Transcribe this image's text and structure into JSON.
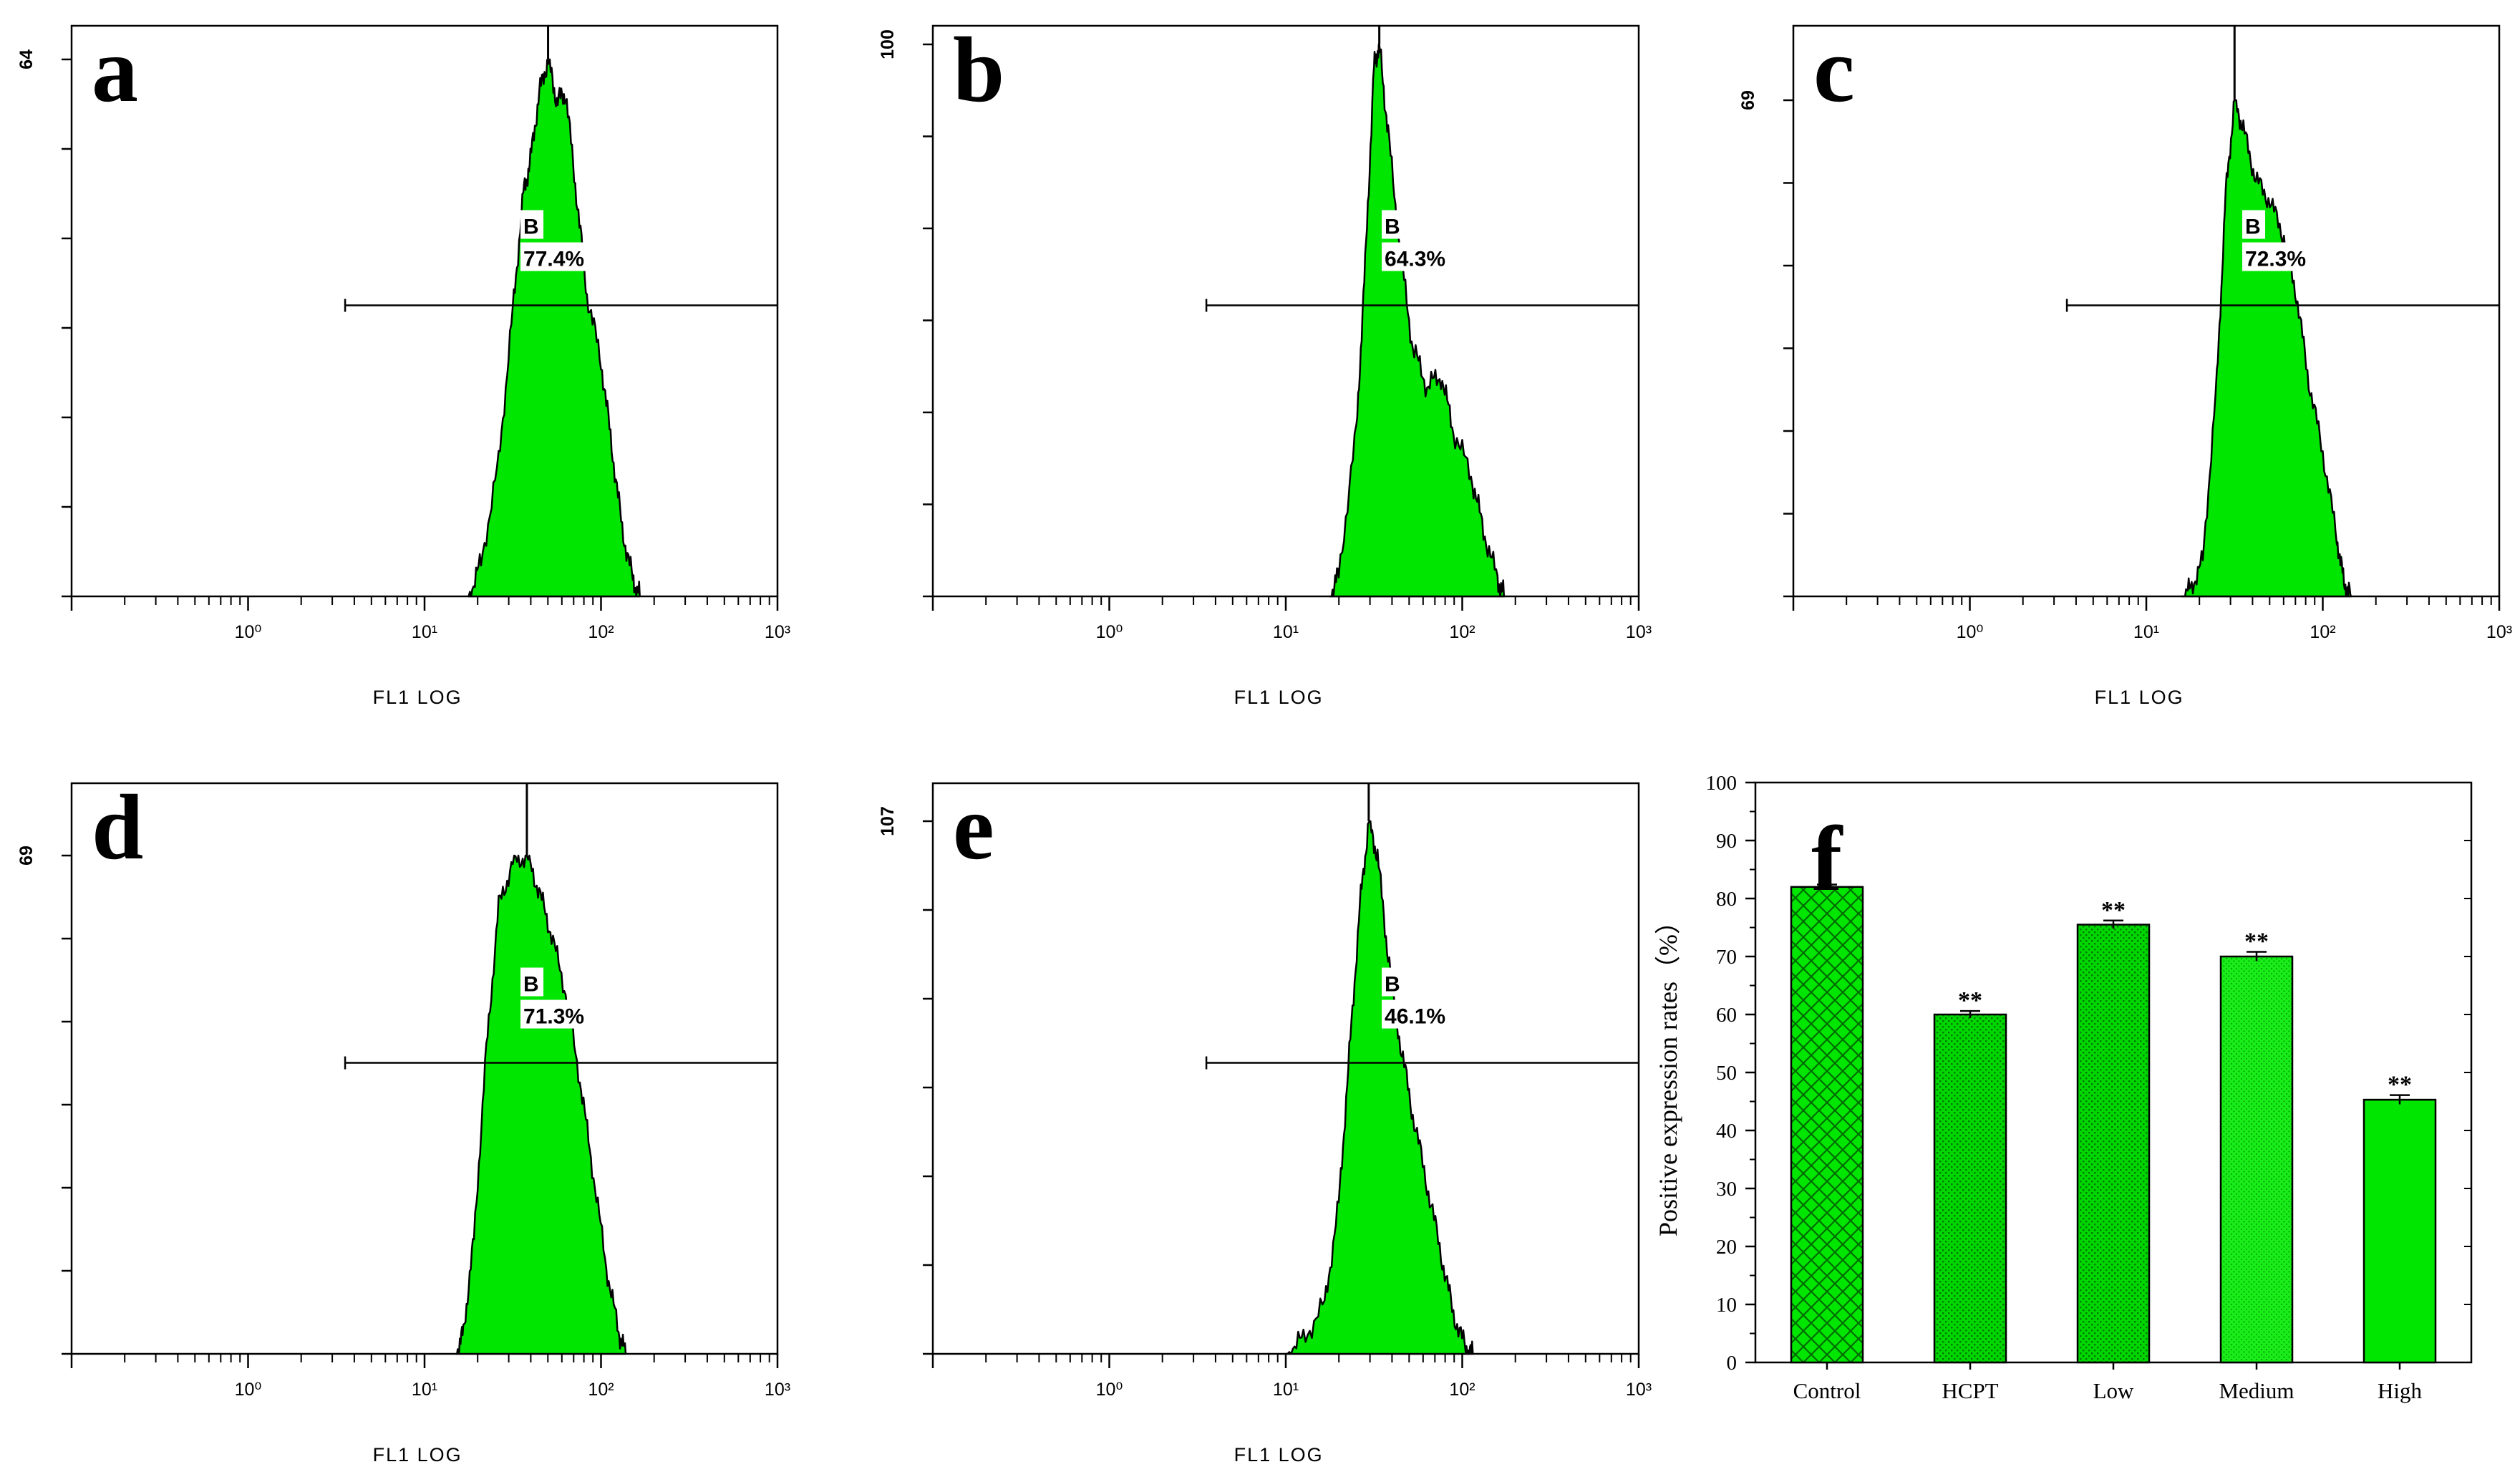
{
  "colors": {
    "fill": "#00e600",
    "fill_dark": "#00b800",
    "outline": "#000000",
    "background": "#ffffff"
  },
  "chart_data": [
    {
      "type": "histogram",
      "panel": "a",
      "y_max_label": "64",
      "xlabel": "FL1 LOG",
      "x_tick_labels": [
        "10⁰",
        "10¹",
        "10²",
        "10³"
      ],
      "x_range_log10": [
        -1,
        3
      ],
      "marker": {
        "name": "B",
        "value": "77.4%",
        "from_log10": 0.55,
        "to_log10": 3
      },
      "distribution": [
        {
          "log10": 1.25,
          "count": 0
        },
        {
          "log10": 1.32,
          "count": 4
        },
        {
          "log10": 1.42,
          "count": 16
        },
        {
          "log10": 1.5,
          "count": 34
        },
        {
          "log10": 1.56,
          "count": 48
        },
        {
          "log10": 1.6,
          "count": 52
        },
        {
          "log10": 1.65,
          "count": 60
        },
        {
          "log10": 1.7,
          "count": 64
        },
        {
          "log10": 1.75,
          "count": 59
        },
        {
          "log10": 1.8,
          "count": 60
        },
        {
          "log10": 1.86,
          "count": 48
        },
        {
          "log10": 1.92,
          "count": 36
        },
        {
          "log10": 2.0,
          "count": 28
        },
        {
          "log10": 2.06,
          "count": 18
        },
        {
          "log10": 2.12,
          "count": 8
        },
        {
          "log10": 2.18,
          "count": 2
        },
        {
          "log10": 2.22,
          "count": 0
        }
      ]
    },
    {
      "type": "histogram",
      "panel": "b",
      "y_max_label": "100",
      "xlabel": "FL1 LOG",
      "x_tick_labels": [
        "10⁰",
        "10¹",
        "10²",
        "10³"
      ],
      "x_range_log10": [
        -1,
        3
      ],
      "marker": {
        "name": "B",
        "value": "64.3%",
        "from_log10": 0.55,
        "to_log10": 3
      },
      "distribution": [
        {
          "log10": 1.25,
          "count": 0
        },
        {
          "log10": 1.3,
          "count": 4
        },
        {
          "log10": 1.4,
          "count": 30
        },
        {
          "log10": 1.45,
          "count": 60
        },
        {
          "log10": 1.5,
          "count": 96
        },
        {
          "log10": 1.53,
          "count": 100
        },
        {
          "log10": 1.58,
          "count": 84
        },
        {
          "log10": 1.65,
          "count": 62
        },
        {
          "log10": 1.72,
          "count": 45
        },
        {
          "log10": 1.8,
          "count": 38
        },
        {
          "log10": 1.88,
          "count": 40
        },
        {
          "log10": 1.95,
          "count": 30
        },
        {
          "log10": 2.05,
          "count": 22
        },
        {
          "log10": 2.12,
          "count": 12
        },
        {
          "log10": 2.2,
          "count": 3
        },
        {
          "log10": 2.24,
          "count": 0
        }
      ]
    },
    {
      "type": "histogram",
      "panel": "c",
      "y_max_label": "69",
      "xlabel": "FL1 LOG",
      "x_tick_labels": [
        "10⁰",
        "10¹",
        "10²",
        "10³"
      ],
      "x_range_log10": [
        -1,
        3
      ],
      "marker": {
        "name": "B",
        "value": "72.3%",
        "from_log10": 0.55,
        "to_log10": 3
      },
      "distribution": [
        {
          "log10": 1.2,
          "count": 0
        },
        {
          "log10": 1.25,
          "count": 1
        },
        {
          "log10": 1.32,
          "count": 5
        },
        {
          "log10": 1.4,
          "count": 30
        },
        {
          "log10": 1.45,
          "count": 56
        },
        {
          "log10": 1.5,
          "count": 69
        },
        {
          "log10": 1.55,
          "count": 65
        },
        {
          "log10": 1.62,
          "count": 58
        },
        {
          "log10": 1.7,
          "count": 55
        },
        {
          "log10": 1.78,
          "count": 50
        },
        {
          "log10": 1.85,
          "count": 42
        },
        {
          "log10": 1.92,
          "count": 30
        },
        {
          "log10": 2.0,
          "count": 20
        },
        {
          "log10": 2.08,
          "count": 8
        },
        {
          "log10": 2.12,
          "count": 2
        },
        {
          "log10": 2.16,
          "count": 0
        }
      ]
    },
    {
      "type": "histogram",
      "panel": "d",
      "y_max_label": "69",
      "xlabel": "FL1 LOG",
      "x_tick_labels": [
        "10⁰",
        "10¹",
        "10²",
        "10³"
      ],
      "x_range_log10": [
        -1,
        3
      ],
      "marker": {
        "name": "B",
        "value": "71.3%",
        "from_log10": 0.55,
        "to_log10": 3
      },
      "distribution": [
        {
          "log10": 1.18,
          "count": 0
        },
        {
          "log10": 1.22,
          "count": 3
        },
        {
          "log10": 1.28,
          "count": 16
        },
        {
          "log10": 1.35,
          "count": 42
        },
        {
          "log10": 1.42,
          "count": 62
        },
        {
          "log10": 1.5,
          "count": 68
        },
        {
          "log10": 1.58,
          "count": 69
        },
        {
          "log10": 1.65,
          "count": 64
        },
        {
          "log10": 1.72,
          "count": 58
        },
        {
          "log10": 1.8,
          "count": 50
        },
        {
          "log10": 1.88,
          "count": 38
        },
        {
          "log10": 1.95,
          "count": 26
        },
        {
          "log10": 2.03,
          "count": 12
        },
        {
          "log10": 2.1,
          "count": 3
        },
        {
          "log10": 2.14,
          "count": 0
        }
      ]
    },
    {
      "type": "histogram",
      "panel": "e",
      "y_max_label": "107",
      "xlabel": "FL1 LOG",
      "x_tick_labels": [
        "10⁰",
        "10¹",
        "10²",
        "10³"
      ],
      "x_range_log10": [
        -1,
        3
      ],
      "marker": {
        "name": "B",
        "value": "46.1%",
        "from_log10": 0.55,
        "to_log10": 3
      },
      "distribution": [
        {
          "log10": 1.0,
          "count": 0
        },
        {
          "log10": 1.1,
          "count": 3
        },
        {
          "log10": 1.22,
          "count": 10
        },
        {
          "log10": 1.3,
          "count": 30
        },
        {
          "log10": 1.36,
          "count": 60
        },
        {
          "log10": 1.42,
          "count": 90
        },
        {
          "log10": 1.47,
          "count": 107
        },
        {
          "log10": 1.52,
          "count": 100
        },
        {
          "log10": 1.58,
          "count": 80
        },
        {
          "log10": 1.65,
          "count": 62
        },
        {
          "log10": 1.72,
          "count": 48
        },
        {
          "log10": 1.8,
          "count": 34
        },
        {
          "log10": 1.88,
          "count": 20
        },
        {
          "log10": 1.95,
          "count": 8
        },
        {
          "log10": 2.02,
          "count": 1
        },
        {
          "log10": 2.06,
          "count": 0
        }
      ]
    },
    {
      "type": "bar",
      "panel": "f",
      "title": "",
      "xlabel": "",
      "ylabel": "Positive expression rates（%）",
      "ylim": [
        0,
        100
      ],
      "y_ticks": [
        0,
        10,
        20,
        30,
        40,
        50,
        60,
        70,
        80,
        90,
        100
      ],
      "categories": [
        "Control",
        "HCPT",
        "Low",
        "Medium",
        "High"
      ],
      "values": [
        82,
        60,
        75.5,
        70,
        45.3
      ],
      "errors": [
        0.4,
        0.6,
        0.7,
        0.8,
        0.8
      ],
      "significance": [
        "",
        "**",
        "**",
        "**",
        "**"
      ],
      "patterns": [
        "crosshatch",
        "dots",
        "dots",
        "dots-fine",
        "solid"
      ]
    }
  ]
}
